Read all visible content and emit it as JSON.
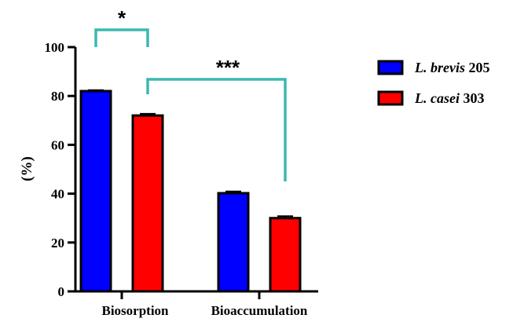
{
  "chart_data": {
    "type": "bar",
    "ylabel": "(%)",
    "ylim": [
      0,
      100
    ],
    "yticks": [
      0,
      20,
      40,
      60,
      80,
      100
    ],
    "categories": [
      "Biosorption",
      "Bioaccumulation"
    ],
    "series": [
      {
        "name_italic": "L. brevis",
        "name_suffix": "205",
        "color": "#0000ff",
        "values": [
          82,
          40.2
        ],
        "errors": [
          0.4,
          0.7
        ]
      },
      {
        "name_italic": "L. casei",
        "name_suffix": "303",
        "color": "#ff0000",
        "values": [
          72,
          30
        ],
        "errors": [
          0.7,
          0.8
        ]
      }
    ],
    "significance": [
      {
        "label": "*",
        "between": "Biosorption: L. brevis 205 vs L. casei 303",
        "color": "#3bb8b0"
      },
      {
        "label": "***",
        "between": "L. casei 303: Biosorption vs Bioaccumulation",
        "color": "#3bb8b0"
      }
    ],
    "legend_position": "top-right",
    "grid": false
  }
}
